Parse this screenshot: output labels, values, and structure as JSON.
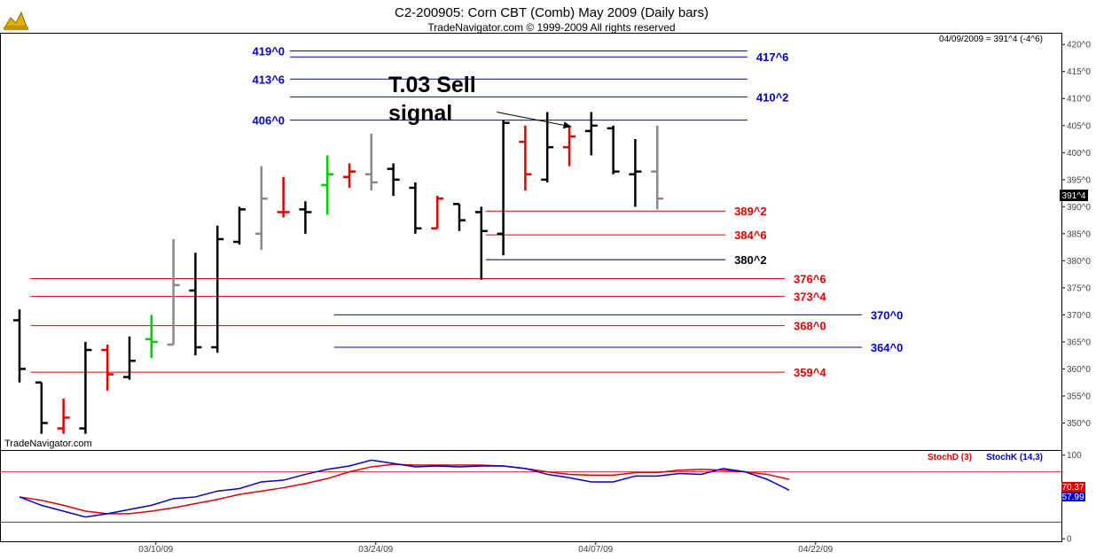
{
  "header": {
    "title": "C2-200905:  Corn CBT (Comb) May 2009  (Daily bars)",
    "subtitle": "TradeNavigator.com © 1999-2009 All rights reserved",
    "info": "04/09/2009 = 391^4 (-4^6)",
    "watermark": "TradeNavigator.com"
  },
  "annotation": {
    "line1": "T.03 Sell",
    "line2": "signal"
  },
  "price_tag": "391^4",
  "chart_data": {
    "type": "ohlc",
    "title": "C2-200905:  Corn CBT (Comb) May 2009  (Daily bars)",
    "price_axis": {
      "ylim": [
        345,
        422
      ],
      "ticks": [
        420,
        415,
        410,
        405,
        400,
        395,
        390,
        385,
        380,
        375,
        370,
        365,
        360,
        355,
        350
      ],
      "tick_labels": [
        "420^0",
        "415^0",
        "410^0",
        "405^0",
        "400^0",
        "395^0",
        "390^0",
        "385^0",
        "380^0",
        "375^0",
        "370^0",
        "365^0",
        "360^0",
        "355^0",
        "350^0"
      ]
    },
    "x_axis": {
      "tick_labels": [
        "03/10/09",
        "03/24/09",
        "04/07/09",
        "04/22/09"
      ],
      "tick_index": [
        6.2,
        16.2,
        26.2,
        36.2
      ]
    },
    "bar_colors": {
      "black": "#000000",
      "red": "#e00000",
      "green": "#00cc00",
      "gray": "#888888"
    },
    "bars": [
      {
        "o": 369.0,
        "h": 371.0,
        "l": 357.5,
        "c": 360.0,
        "color": "black"
      },
      {
        "o": 357.5,
        "h": 357.5,
        "l": 348.0,
        "c": 350.0,
        "color": "black"
      },
      {
        "o": 349.0,
        "h": 354.5,
        "l": 348.0,
        "c": 351.0,
        "color": "red"
      },
      {
        "o": 349.0,
        "h": 365.0,
        "l": 348.0,
        "c": 363.5,
        "color": "black"
      },
      {
        "o": 363.5,
        "h": 364.5,
        "l": 356.0,
        "c": 359.0,
        "color": "red"
      },
      {
        "o": 358.5,
        "h": 366.0,
        "l": 358.0,
        "c": 361.5,
        "color": "black"
      },
      {
        "o": 365.5,
        "h": 370.0,
        "l": 362.0,
        "c": 365.0,
        "color": "green"
      },
      {
        "o": 364.5,
        "h": 384.0,
        "l": 364.5,
        "c": 375.5,
        "color": "gray"
      },
      {
        "o": 374.5,
        "h": 381.5,
        "l": 362.5,
        "c": 364.0,
        "color": "black"
      },
      {
        "o": 364.0,
        "h": 386.5,
        "l": 363.0,
        "c": 384.0,
        "color": "black"
      },
      {
        "o": 383.5,
        "h": 390.0,
        "l": 383.0,
        "c": 389.5,
        "color": "black"
      },
      {
        "o": 385.0,
        "h": 397.5,
        "l": 382.0,
        "c": 391.5,
        "color": "gray"
      },
      {
        "o": 389.0,
        "h": 395.5,
        "l": 388.0,
        "c": 389.0,
        "color": "red"
      },
      {
        "o": 389.5,
        "h": 391.0,
        "l": 385.0,
        "c": 389.0,
        "color": "black"
      },
      {
        "o": 394.0,
        "h": 399.5,
        "l": 388.5,
        "c": 396.0,
        "color": "green"
      },
      {
        "o": 395.5,
        "h": 398.0,
        "l": 393.5,
        "c": 396.5,
        "color": "red"
      },
      {
        "o": 396.0,
        "h": 403.5,
        "l": 393.0,
        "c": 394.5,
        "color": "gray"
      },
      {
        "o": 397.0,
        "h": 398.0,
        "l": 392.0,
        "c": 395.0,
        "color": "black"
      },
      {
        "o": 393.5,
        "h": 394.5,
        "l": 385.0,
        "c": 386.0,
        "color": "black"
      },
      {
        "o": 386.0,
        "h": 392.0,
        "l": 386.0,
        "c": 391.5,
        "color": "red"
      },
      {
        "o": 390.5,
        "h": 390.5,
        "l": 385.5,
        "c": 387.5,
        "color": "black"
      },
      {
        "o": 389.0,
        "h": 390.0,
        "l": 376.5,
        "c": 385.5,
        "color": "black"
      },
      {
        "o": 385.0,
        "h": 406.0,
        "l": 381.0,
        "c": 405.5,
        "color": "black"
      },
      {
        "o": 402.0,
        "h": 405.0,
        "l": 393.0,
        "c": 396.0,
        "color": "red"
      },
      {
        "o": 395.0,
        "h": 407.5,
        "l": 394.5,
        "c": 401.0,
        "color": "black"
      },
      {
        "o": 401.0,
        "h": 405.0,
        "l": 397.5,
        "c": 403.0,
        "color": "red"
      },
      {
        "o": 404.0,
        "h": 407.5,
        "l": 399.5,
        "c": 405.0,
        "color": "black"
      },
      {
        "o": 404.5,
        "h": 405.0,
        "l": 396.0,
        "c": 396.5,
        "color": "black"
      },
      {
        "o": 396.0,
        "h": 402.5,
        "l": 390.0,
        "c": 396.5,
        "color": "black"
      },
      {
        "o": 396.5,
        "h": 405.0,
        "l": 389.5,
        "c": 391.5,
        "color": "gray"
      }
    ],
    "horizontal_levels": [
      {
        "label": "419^0",
        "value": 418.8,
        "color": "#0000c8",
        "x_start": 12.3,
        "x_end": 33.1,
        "label_side": "left"
      },
      {
        "label": "417^6",
        "value": 417.7,
        "color": "#0000c8",
        "x_start": 12.3,
        "x_end": 33.1,
        "label_side": "right"
      },
      {
        "label": "413^6",
        "value": 413.6,
        "color": "#0000c8",
        "x_start": 12.3,
        "x_end": 33.1,
        "label_side": "left"
      },
      {
        "label": "410^2",
        "value": 410.3,
        "color": "#0000c8",
        "x_start": 12.3,
        "x_end": 33.1,
        "label_side": "right"
      },
      {
        "label": "406^0",
        "value": 406.0,
        "color": "#0000c8",
        "x_start": 12.3,
        "x_end": 33.1,
        "label_side": "left"
      },
      {
        "label": "389^2",
        "value": 389.2,
        "color": "#e00000",
        "x_start": 21.2,
        "x_end": 32.1,
        "label_side": "right"
      },
      {
        "label": "384^6",
        "value": 384.8,
        "color": "#e00000",
        "x_start": 21.2,
        "x_end": 32.1,
        "label_side": "right"
      },
      {
        "label": "380^2",
        "value": 380.2,
        "color": "#000000",
        "x_start": 21.2,
        "x_end": 32.1,
        "label_side": "right"
      },
      {
        "label": "376^6",
        "value": 376.7,
        "color": "#e00000",
        "x_start": 0.5,
        "x_end": 34.8,
        "label_side": "right"
      },
      {
        "label": "373^4",
        "value": 373.4,
        "color": "#e00000",
        "x_start": 0.5,
        "x_end": 34.8,
        "label_side": "right"
      },
      {
        "label": "370^0",
        "value": 370.0,
        "color": "#0000c8",
        "x_start": 14.3,
        "x_end": 38.3,
        "label_side": "right"
      },
      {
        "label": "368^0",
        "value": 368.0,
        "color": "#e00000",
        "x_start": 0.5,
        "x_end": 34.8,
        "label_side": "right"
      },
      {
        "label": "364^0",
        "value": 364.0,
        "color": "#0000c8",
        "x_start": 14.3,
        "x_end": 38.3,
        "label_side": "right"
      },
      {
        "label": "359^4",
        "value": 359.4,
        "color": "#e00000",
        "x_start": 0.5,
        "x_end": 34.8,
        "label_side": "right"
      }
    ],
    "annotation_arrow": {
      "from": [
        21.7,
        407.5
      ],
      "to": [
        25.1,
        404.8
      ]
    },
    "indicator": {
      "ylim": [
        -3,
        105
      ],
      "ticks": [
        100,
        50,
        0
      ],
      "reference_lines": [
        80,
        20
      ],
      "legend": [
        "StochD (3)",
        "StochK (14,3)"
      ],
      "values_display": {
        "stochD": "70.37",
        "stochK": "57.99"
      },
      "series": [
        {
          "name": "StochD (3)",
          "color": "#e00000",
          "values": [
            50,
            46,
            40,
            33,
            30,
            30,
            33,
            37,
            42,
            47,
            53,
            57,
            61,
            66,
            72,
            80,
            86,
            89,
            88,
            88,
            88,
            88,
            87,
            84,
            80,
            77,
            76,
            76,
            79,
            79,
            82,
            83,
            82,
            80,
            77,
            71
          ]
        },
        {
          "name": "StochK (14,3)",
          "color": "#0000c8",
          "values": [
            50,
            40,
            33,
            26,
            30,
            35,
            40,
            48,
            50,
            57,
            60,
            68,
            70,
            77,
            83,
            87,
            94,
            90,
            86,
            87,
            86,
            87,
            87,
            84,
            77,
            73,
            68,
            68,
            75,
            75,
            78,
            77,
            84,
            80,
            71,
            58
          ]
        }
      ]
    }
  }
}
